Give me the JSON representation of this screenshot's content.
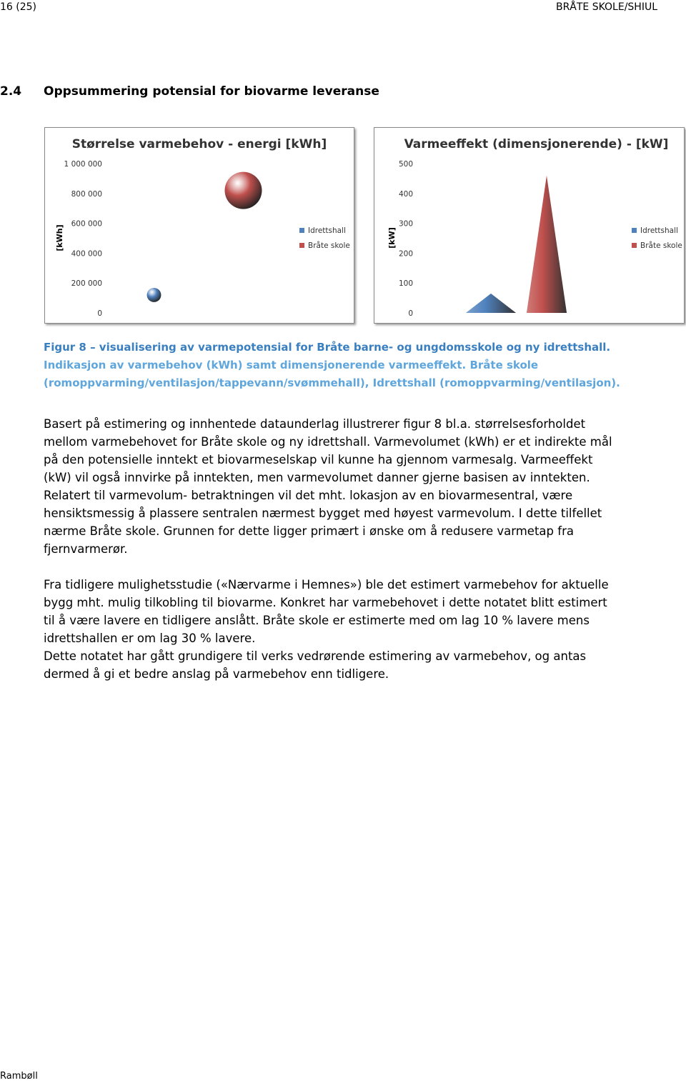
{
  "header": {
    "page": "16 (25)",
    "doc": "BRÅTE SKOLE/SHIUL"
  },
  "section": {
    "number": "2.4",
    "title": "Oppsummering potensial for biovarme leveranse"
  },
  "chart_data": [
    {
      "type": "bubble",
      "title": "Størrelse varmebehov - energi [kWh]",
      "y_label": "[kWh]",
      "ylim": [
        0,
        1000000
      ],
      "yticks": [
        0,
        {
          "value": 200000,
          "label": "200 000"
        },
        {
          "value": 400000,
          "label": "400 000"
        },
        {
          "value": 600000,
          "label": "600 000"
        },
        {
          "value": 800000,
          "label": "800 000"
        },
        {
          "value": 1000000,
          "label": "1 000 000"
        }
      ],
      "series": [
        {
          "name": "Idrettshall",
          "color": "#4f81bd",
          "values": [
            120000
          ]
        },
        {
          "name": "Bråte skole",
          "color": "#c0504d",
          "values": [
            820000
          ]
        }
      ],
      "legend": "right"
    },
    {
      "type": "cone",
      "title": "Varmeeffekt (dimensjonerende) - [kW]",
      "y_label": "[kW]",
      "ylim": [
        0,
        500
      ],
      "yticks": [
        0,
        100,
        200,
        300,
        400,
        500
      ],
      "series": [
        {
          "name": "Idrettshall",
          "color": "#4f81bd",
          "values": [
            65
          ]
        },
        {
          "name": "Bråte skole",
          "color": "#c0504d",
          "values": [
            460
          ]
        }
      ],
      "legend": "right"
    }
  ],
  "caption": [
    "Figur 8 – visualisering av varmepotensial for Bråte barne- og ungdomsskole og ny idrettshall.",
    "Indikasjon av varmebehov (kWh) samt dimensjonerende varmeeffekt. Bråte skole (romoppvarming/ventilasjon/tappevann/svømmehall), Idrettshall (romoppvarming/ventilasjon)."
  ],
  "paragraphs": [
    [
      "Basert på estimering og innhentede dataunderlag illustrerer figur 8 bl.a. størrelsesforholdet",
      "mellom varmebehovet for Bråte skole og ny idrettshall. Varmevolumet (kWh) er et indirekte mål",
      "på den potensielle inntekt et biovarmeselskap vil kunne ha gjennom varmesalg. Varmeeffekt",
      "(kW) vil også innvirke på inntekten, men varmevolumet danner gjerne basisen av inntekten.",
      "Relatert til varmevolum- betraktningen vil det mht. lokasjon av en biovarmesentral, være",
      "hensiktsmessig å plassere sentralen nærmest bygget med høyest varmevolum. I dette tilfellet",
      "nærme Bråte skole. Grunnen for dette ligger primært i ønske om å redusere varmetap fra",
      "fjernvarmerør."
    ],
    [
      "Fra tidligere mulighetsstudie («Nærvarme i Hemnes») ble det estimert varmebehov for aktuelle",
      "bygg mht. mulig tilkobling til biovarme. Konkret har varmebehovet i dette notatet blitt estimert",
      "til å være lavere en tidligere anslått. Bråte skole er estimerte med om lag 10 % lavere mens",
      "idrettshallen er om lag 30 % lavere."
    ],
    [
      "Dette notatet har gått grundigere til verks vedrørende estimering av varmebehov, og antas",
      "dermed å gi et bedre anslag på varmebehov enn tidligere."
    ]
  ],
  "footer": "Rambøll"
}
